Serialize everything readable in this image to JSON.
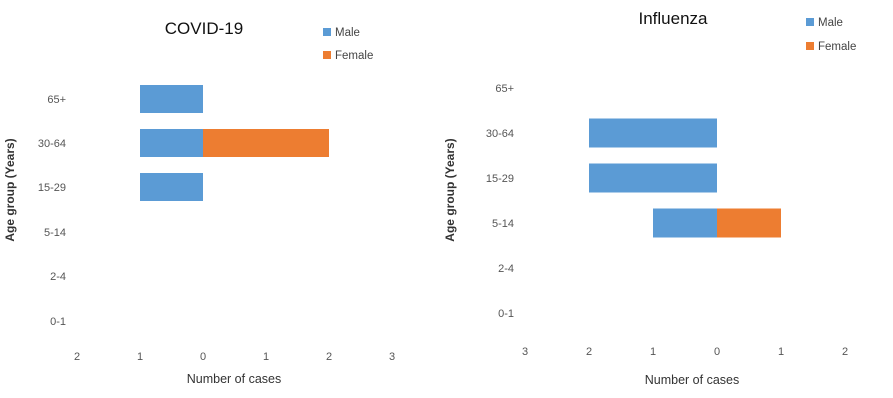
{
  "chart_data": [
    {
      "type": "bar",
      "orientation": "horizontal",
      "style": "population-pyramid",
      "title": "COVID-19",
      "xlabel": "Number of cases",
      "ylabel": "Age group (Years)",
      "categories": [
        "0-1",
        "2-4",
        "5-14",
        "15-29",
        "30-64",
        "65+"
      ],
      "xticks": [
        "2",
        "1",
        "0",
        "1",
        "2",
        "3"
      ],
      "xlim": [
        -2,
        3
      ],
      "legend_position": "top-right",
      "series": [
        {
          "name": "Male",
          "color": "#5b9bd5",
          "values": [
            0,
            0,
            0,
            1,
            1,
            1
          ]
        },
        {
          "name": "Female",
          "color": "#ed7d31",
          "values": [
            0,
            0,
            0,
            0,
            2,
            0
          ]
        }
      ]
    },
    {
      "type": "bar",
      "orientation": "horizontal",
      "style": "population-pyramid",
      "title": "Influenza",
      "xlabel": "Number of cases",
      "ylabel": "Age group (Years)",
      "categories": [
        "0-1",
        "2-4",
        "5-14",
        "15-29",
        "30-64",
        "65+"
      ],
      "xticks": [
        "3",
        "2",
        "1",
        "0",
        "1",
        "2"
      ],
      "xlim": [
        -3,
        2
      ],
      "legend_position": "top-right",
      "series": [
        {
          "name": "Male",
          "color": "#5b9bd5",
          "values": [
            0,
            0,
            1,
            2,
            2,
            0
          ]
        },
        {
          "name": "Female",
          "color": "#ed7d31",
          "values": [
            0,
            0,
            1,
            0,
            0,
            0
          ]
        }
      ]
    }
  ]
}
